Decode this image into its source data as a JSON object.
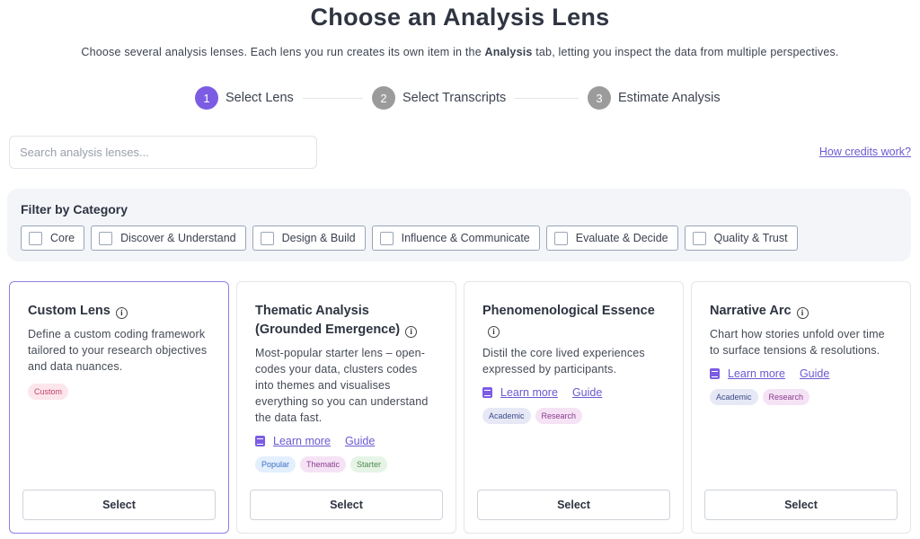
{
  "header": {
    "title": "Choose an Analysis Lens",
    "description": [
      {
        "text": "Choose several analysis lenses. Each lens you run creates its own item in the ",
        "bold": false
      },
      {
        "text": "Analysis",
        "bold": true
      },
      {
        "text": " tab, letting you inspect the data from multiple perspectives.",
        "bold": false
      }
    ]
  },
  "steps": [
    {
      "number": 1,
      "label": "Select Lens",
      "active": true
    },
    {
      "number": 2,
      "label": "Select Transcripts",
      "active": false
    },
    {
      "number": 3,
      "label": "Estimate Analysis",
      "active": false
    }
  ],
  "search": {
    "placeholder": "Search analysis lenses..."
  },
  "credits_link": "How credits work?",
  "filter": {
    "title": "Filter by Category",
    "categories": [
      "Core",
      "Discover & Understand",
      "Design & Build",
      "Influence & Communicate",
      "Evaluate & Decide",
      "Quality & Trust"
    ]
  },
  "cards": [
    {
      "title": "Custom Lens",
      "selected": true,
      "description": "Define a custom coding framework tailored to your research objectives and data nuances.",
      "links": [],
      "tags": [
        {
          "label": "Custom",
          "bg": "#fce6ec",
          "fg": "#c2456a"
        }
      ],
      "button": "Select"
    },
    {
      "title": "Thematic Analysis (Grounded Emergence)",
      "selected": false,
      "description": "Most-popular starter lens – open-codes your data, clusters codes into themes and visualises everything so you can understand the data fast.",
      "links": [
        "Learn more",
        "Guide"
      ],
      "tags": [
        {
          "label": "Popular",
          "bg": "#e3effd",
          "fg": "#3f6fc4"
        },
        {
          "label": "Thematic",
          "bg": "#f5e3f5",
          "fg": "#8a3b8f"
        },
        {
          "label": "Starter",
          "bg": "#e6f4e6",
          "fg": "#4c8a4c"
        }
      ],
      "button": "Select"
    },
    {
      "title": "Phenomenological Essence",
      "selected": false,
      "description": "Distil the core lived experiences expressed by participants.",
      "links": [
        "Learn more",
        "Guide"
      ],
      "tags": [
        {
          "label": "Academic",
          "bg": "#e6e9f5",
          "fg": "#3d4a8a"
        },
        {
          "label": "Research",
          "bg": "#f5e3f5",
          "fg": "#8a3b8f"
        }
      ],
      "button": "Select"
    },
    {
      "title": "Narrative Arc",
      "selected": false,
      "description": "Chart how stories unfold over time to surface tensions & resolutions.",
      "links": [
        "Learn more",
        "Guide"
      ],
      "tags": [
        {
          "label": "Academic",
          "bg": "#e6e9f5",
          "fg": "#3d4a8a"
        },
        {
          "label": "Research",
          "bg": "#f5e3f5",
          "fg": "#8a3b8f"
        }
      ],
      "button": "Select"
    }
  ]
}
